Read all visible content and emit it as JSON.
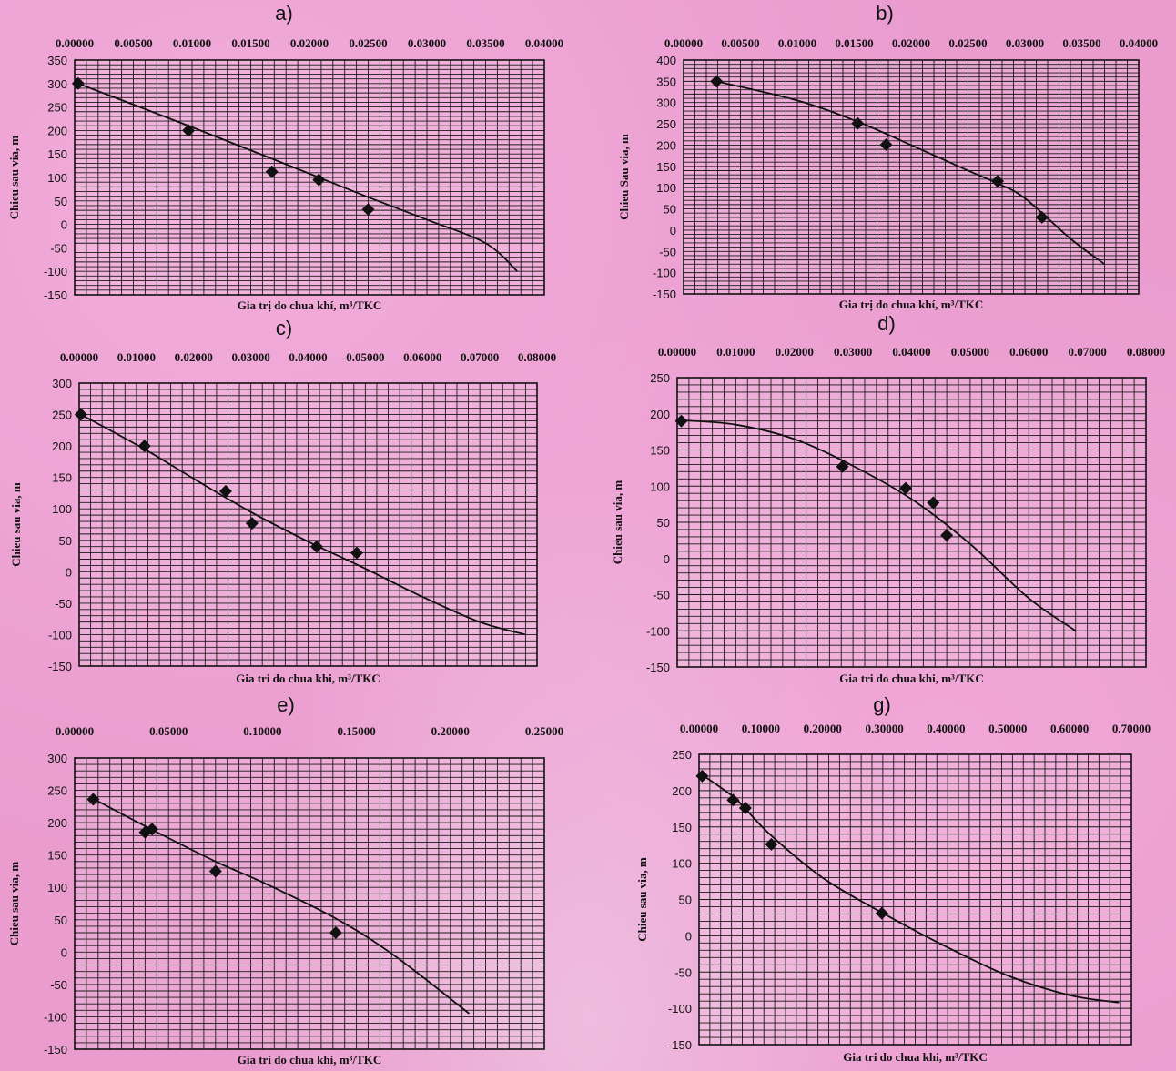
{
  "chart_data": [
    {
      "panel": "a)",
      "type": "scatter",
      "xlabel": "Gia trị do chua khí, m³/TKC",
      "ylabel": "Chieu sau via, m",
      "xlim": [
        0,
        0.04
      ],
      "ylim": [
        -150,
        350
      ],
      "x_ticks": [
        "0.00000",
        "0.00500",
        "0.01000",
        "0.01500",
        "0.02000",
        "0.02500",
        "0.03000",
        "0.03500",
        "0.04000"
      ],
      "y_ticks": [
        "350",
        "300",
        "250",
        "200",
        "150",
        "100",
        "50",
        "0",
        "-50",
        "-100",
        "-150"
      ],
      "x_tick_positions": [
        0,
        0.005,
        0.01,
        0.015,
        0.02,
        0.025,
        0.03,
        0.035,
        0.04
      ],
      "y_tick_positions": [
        350,
        300,
        250,
        200,
        150,
        100,
        50,
        0,
        -50,
        -100,
        -150
      ],
      "points": [
        [
          0.0003,
          300
        ],
        [
          0.0097,
          200
        ],
        [
          0.0168,
          112
        ],
        [
          0.0208,
          95
        ],
        [
          0.025,
          32
        ]
      ],
      "trendline": [
        [
          0.0003,
          300
        ],
        [
          0.0097,
          210
        ],
        [
          0.0168,
          140
        ],
        [
          0.0208,
          100
        ],
        [
          0.025,
          58
        ],
        [
          0.03,
          10
        ],
        [
          0.035,
          -40
        ],
        [
          0.0377,
          -100
        ]
      ]
    },
    {
      "panel": "b)",
      "type": "scatter",
      "xlabel": "Gia trị do chua khí, m³/TKC",
      "ylabel": "Chieu Sau via, m",
      "xlim": [
        0,
        0.04
      ],
      "ylim": [
        -150,
        400
      ],
      "x_ticks": [
        "0.00000",
        "0.00500",
        "0.01000",
        "0.01500",
        "0.02000",
        "0.02500",
        "0.03000",
        "0.03500",
        "0.04000"
      ],
      "y_ticks": [
        "400",
        "350",
        "300",
        "250",
        "200",
        "150",
        "100",
        "50",
        "0",
        "-50",
        "-100",
        "-150"
      ],
      "x_tick_positions": [
        0,
        0.005,
        0.01,
        0.015,
        0.02,
        0.025,
        0.03,
        0.035,
        0.04
      ],
      "y_tick_positions": [
        400,
        350,
        300,
        250,
        200,
        150,
        100,
        50,
        0,
        -50,
        -100,
        -150
      ],
      "points": [
        [
          0.0029,
          350
        ],
        [
          0.0153,
          251
        ],
        [
          0.0178,
          201
        ],
        [
          0.0276,
          115
        ],
        [
          0.0315,
          30
        ]
      ],
      "trendline": [
        [
          0.0029,
          350
        ],
        [
          0.01,
          305
        ],
        [
          0.0153,
          255
        ],
        [
          0.02,
          200
        ],
        [
          0.025,
          140
        ],
        [
          0.0276,
          110
        ],
        [
          0.03,
          75
        ],
        [
          0.034,
          -20
        ],
        [
          0.037,
          -80
        ]
      ]
    },
    {
      "panel": "c)",
      "type": "scatter",
      "xlabel": "Gia tri do chua khi, m³/TKC",
      "ylabel": "Chieu sau via, m",
      "xlim": [
        0,
        0.08
      ],
      "ylim": [
        -150,
        300
      ],
      "x_ticks": [
        "0.00000",
        "0.01000",
        "0.02000",
        "0.03000",
        "0.04000",
        "0.05000",
        "0.06000",
        "0.07000",
        "0.08000"
      ],
      "y_ticks": [
        "300",
        "250",
        "200",
        "150",
        "100",
        "50",
        "0",
        "-50",
        "-100",
        "-150"
      ],
      "x_tick_positions": [
        0,
        0.01,
        0.02,
        0.03,
        0.04,
        0.05,
        0.06,
        0.07,
        0.08
      ],
      "y_tick_positions": [
        300,
        250,
        200,
        150,
        100,
        50,
        0,
        -50,
        -100,
        -150
      ],
      "points": [
        [
          0.0003,
          250
        ],
        [
          0.0114,
          200
        ],
        [
          0.0256,
          128
        ],
        [
          0.0302,
          77
        ],
        [
          0.0415,
          40
        ],
        [
          0.0485,
          30
        ]
      ],
      "trendline": [
        [
          0.0003,
          250
        ],
        [
          0.0114,
          195
        ],
        [
          0.02,
          148
        ],
        [
          0.03,
          95
        ],
        [
          0.04,
          48
        ],
        [
          0.05,
          5
        ],
        [
          0.06,
          -40
        ],
        [
          0.07,
          -80
        ],
        [
          0.078,
          -100
        ]
      ]
    },
    {
      "panel": "d)",
      "type": "scatter",
      "xlabel": "Gia tri do chua khi, m³/TKC",
      "ylabel": "Chieu sau via, m",
      "xlim": [
        0,
        0.08
      ],
      "ylim": [
        -150,
        250
      ],
      "x_ticks": [
        "0.00000",
        "0.01000",
        "0.02000",
        "0.03000",
        "0.04000",
        "0.05000",
        "0.06000",
        "0.07000",
        "0.08000"
      ],
      "y_ticks": [
        "250",
        "200",
        "150",
        "100",
        "50",
        "0",
        "-50",
        "-100",
        "-150"
      ],
      "x_tick_positions": [
        0,
        0.01,
        0.02,
        0.03,
        0.04,
        0.05,
        0.06,
        0.07,
        0.08
      ],
      "y_tick_positions": [
        250,
        200,
        150,
        100,
        50,
        0,
        -50,
        -100,
        -150
      ],
      "points": [
        [
          0.0007,
          190
        ],
        [
          0.0282,
          127
        ],
        [
          0.039,
          97
        ],
        [
          0.0437,
          77
        ],
        [
          0.046,
          32
        ]
      ],
      "trendline": [
        [
          0.0007,
          191
        ],
        [
          0.01,
          185
        ],
        [
          0.02,
          165
        ],
        [
          0.03,
          128
        ],
        [
          0.04,
          82
        ],
        [
          0.05,
          20
        ],
        [
          0.06,
          -55
        ],
        [
          0.068,
          -100
        ]
      ]
    },
    {
      "panel": "e)",
      "type": "scatter",
      "xlabel": "Gia tri do chua khi, m³/TKC",
      "ylabel": "Chieu sau via, m",
      "xlim": [
        0,
        0.25
      ],
      "ylim": [
        -150,
        300
      ],
      "x_ticks": [
        "0.00000",
        "0.05000",
        "0.10000",
        "0.15000",
        "0.20000",
        "0.25000"
      ],
      "y_ticks": [
        "300",
        "250",
        "200",
        "150",
        "100",
        "50",
        "0",
        "-50",
        "-100",
        "-150"
      ],
      "x_tick_positions": [
        0,
        0.05,
        0.1,
        0.15,
        0.2,
        0.25
      ],
      "y_tick_positions": [
        300,
        250,
        200,
        150,
        100,
        50,
        0,
        -50,
        -100,
        -150
      ],
      "points": [
        [
          0.0099,
          236
        ],
        [
          0.0375,
          185
        ],
        [
          0.0412,
          190
        ],
        [
          0.075,
          125
        ],
        [
          0.139,
          30
        ]
      ],
      "trendline": [
        [
          0.0099,
          237
        ],
        [
          0.04,
          191
        ],
        [
          0.075,
          140
        ],
        [
          0.1,
          108
        ],
        [
          0.139,
          52
        ],
        [
          0.17,
          -5
        ],
        [
          0.21,
          -95
        ]
      ]
    },
    {
      "panel": "g)",
      "type": "scatter",
      "xlabel": "Gia tri do chua khi, m³/TKC",
      "ylabel": "Chieu sau via, m",
      "xlim": [
        0,
        0.7
      ],
      "ylim": [
        -150,
        250
      ],
      "x_ticks": [
        "0.00000",
        "0.10000",
        "0.20000",
        "0.30000",
        "0.40000",
        "0.50000",
        "0.60000",
        "0.70000"
      ],
      "y_ticks": [
        "250",
        "200",
        "150",
        "100",
        "50",
        "0",
        "-50",
        "-100",
        "-150"
      ],
      "x_tick_positions": [
        0,
        0.1,
        0.2,
        0.3,
        0.4,
        0.5,
        0.6,
        0.7
      ],
      "y_tick_positions": [
        250,
        200,
        150,
        100,
        50,
        0,
        -50,
        -100,
        -150
      ],
      "points": [
        [
          0.005,
          220
        ],
        [
          0.055,
          187
        ],
        [
          0.075,
          176
        ],
        [
          0.117,
          126
        ],
        [
          0.296,
          31
        ]
      ],
      "trendline": [
        [
          0.005,
          222
        ],
        [
          0.055,
          192
        ],
        [
          0.075,
          175
        ],
        [
          0.117,
          138
        ],
        [
          0.2,
          80
        ],
        [
          0.3,
          30
        ],
        [
          0.4,
          -15
        ],
        [
          0.5,
          -55
        ],
        [
          0.6,
          -82
        ],
        [
          0.68,
          -92
        ]
      ]
    }
  ]
}
